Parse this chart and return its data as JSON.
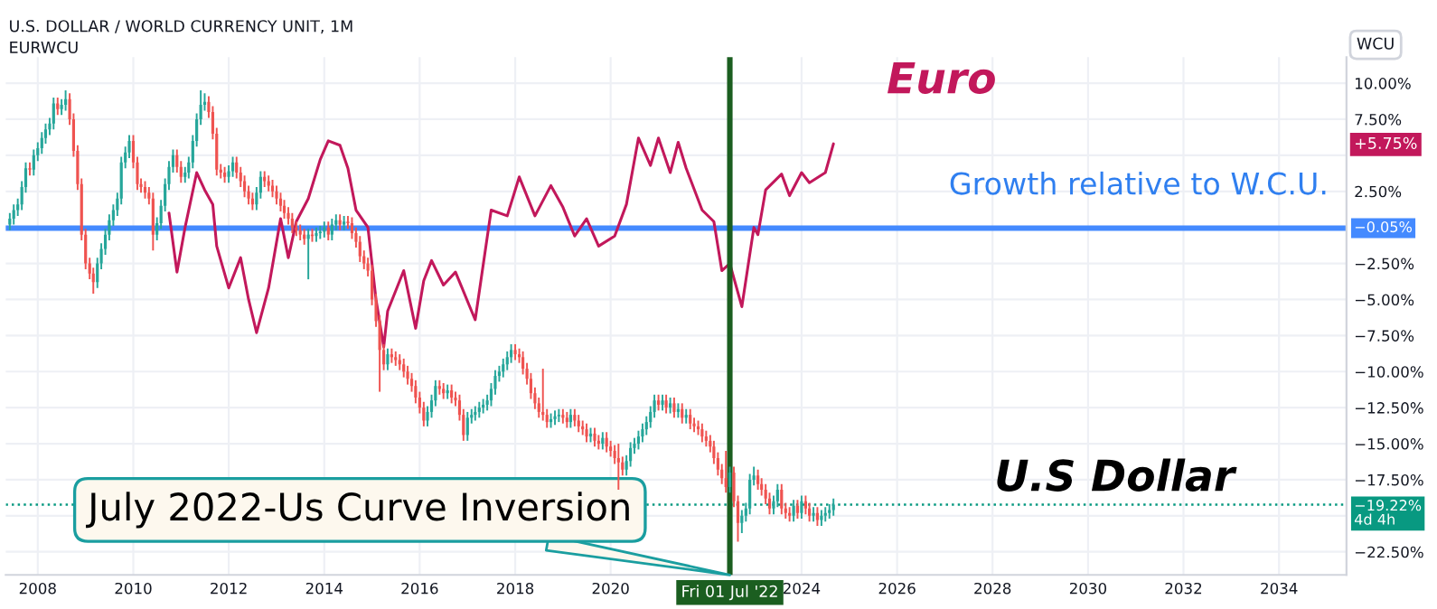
{
  "chart_data": {
    "type": "candlestick",
    "title": "U.S. DOLLAR / WORLD CURRENCY UNIT, 1M",
    "subtitle": "EURWCU",
    "ylabel": "WCU",
    "x": [
      "2007-06",
      "2007-07",
      "2007-08",
      "2007-09",
      "2007-10",
      "2007-11",
      "2007-12",
      "2008-01",
      "2008-02",
      "2008-03",
      "2008-04",
      "2008-05",
      "2008-06",
      "2008-07",
      "2008-08",
      "2008-09",
      "2008-10",
      "2008-11",
      "2008-12",
      "2009-01",
      "2009-02",
      "2009-03",
      "2009-04",
      "2009-05",
      "2009-06",
      "2009-07",
      "2009-08",
      "2009-09",
      "2009-10",
      "2009-11",
      "2009-12",
      "2010-01",
      "2010-02",
      "2010-03",
      "2010-04",
      "2010-05",
      "2010-06",
      "2010-07",
      "2010-08",
      "2010-09",
      "2010-10",
      "2010-11",
      "2010-12",
      "2011-01",
      "2011-02",
      "2011-03",
      "2011-04",
      "2011-05",
      "2011-06",
      "2011-07",
      "2011-08",
      "2011-09",
      "2011-10",
      "2011-11",
      "2011-12",
      "2012-01",
      "2012-02",
      "2012-03",
      "2012-04",
      "2012-05",
      "2012-06",
      "2012-07",
      "2012-08",
      "2012-09",
      "2012-10",
      "2012-11",
      "2012-12",
      "2013-01",
      "2013-02",
      "2013-03",
      "2013-04",
      "2013-05",
      "2013-06",
      "2013-07",
      "2013-08",
      "2013-09",
      "2013-10",
      "2013-11",
      "2013-12",
      "2014-01",
      "2014-02",
      "2014-03",
      "2014-04",
      "2014-05",
      "2014-06",
      "2014-07",
      "2014-08",
      "2014-09",
      "2014-10",
      "2014-11",
      "2014-12",
      "2015-01",
      "2015-02",
      "2015-03",
      "2015-04",
      "2015-05",
      "2015-06",
      "2015-07",
      "2015-08",
      "2015-09",
      "2015-10",
      "2015-11",
      "2015-12",
      "2016-01",
      "2016-02",
      "2016-03",
      "2016-04",
      "2016-05",
      "2016-06",
      "2016-07",
      "2016-08",
      "2016-09",
      "2016-10",
      "2016-11",
      "2016-12",
      "2017-01",
      "2017-02",
      "2017-03",
      "2017-04",
      "2017-05",
      "2017-06",
      "2017-07",
      "2017-08",
      "2017-09",
      "2017-10",
      "2017-11",
      "2017-12",
      "2018-01",
      "2018-02",
      "2018-03",
      "2018-04",
      "2018-05",
      "2018-06",
      "2018-07",
      "2018-08",
      "2018-09",
      "2018-10",
      "2018-11",
      "2018-12",
      "2019-01",
      "2019-02",
      "2019-03",
      "2019-04",
      "2019-05",
      "2019-06",
      "2019-07",
      "2019-08",
      "2019-09",
      "2019-10",
      "2019-11",
      "2019-12",
      "2020-01",
      "2020-02",
      "2020-03",
      "2020-04",
      "2020-05",
      "2020-06",
      "2020-07",
      "2020-08",
      "2020-09",
      "2020-10",
      "2020-11",
      "2020-12",
      "2021-01",
      "2021-02",
      "2021-03",
      "2021-04",
      "2021-05",
      "2021-06",
      "2021-07",
      "2021-08",
      "2021-09",
      "2021-10",
      "2021-11",
      "2021-12",
      "2022-01",
      "2022-02",
      "2022-03",
      "2022-04",
      "2022-05",
      "2022-06",
      "2022-07",
      "2022-08",
      "2022-09",
      "2022-10",
      "2022-11",
      "2022-12",
      "2023-01",
      "2023-02",
      "2023-03",
      "2023-04",
      "2023-05",
      "2023-06",
      "2023-07",
      "2023-08",
      "2023-09",
      "2023-10",
      "2023-11",
      "2023-12",
      "2024-01",
      "2024-02",
      "2024-03",
      "2024-04",
      "2024-05",
      "2024-06",
      "2024-07",
      "2024-08",
      "2024-09"
    ],
    "ohlc": [
      [
        0.2,
        1.0,
        -0.2,
        0.6
      ],
      [
        0.6,
        1.6,
        0.2,
        1.2
      ],
      [
        1.2,
        2.0,
        0.8,
        1.6
      ],
      [
        1.6,
        3.2,
        1.2,
        2.8
      ],
      [
        2.8,
        4.5,
        2.4,
        4.1
      ],
      [
        4.1,
        4.5,
        3.6,
        4.0
      ],
      [
        4.0,
        5.4,
        3.6,
        5.0
      ],
      [
        5.0,
        5.9,
        4.6,
        5.5
      ],
      [
        5.5,
        6.6,
        5.1,
        6.2
      ],
      [
        6.2,
        7.2,
        5.8,
        6.8
      ],
      [
        6.8,
        7.6,
        6.4,
        7.2
      ],
      [
        7.2,
        9.0,
        6.8,
        8.6
      ],
      [
        8.6,
        9.0,
        7.8,
        8.2
      ],
      [
        8.2,
        8.9,
        7.8,
        8.5
      ],
      [
        8.5,
        9.5,
        8.1,
        8.9
      ],
      [
        8.9,
        9.3,
        7.1,
        7.5
      ],
      [
        7.5,
        7.9,
        4.9,
        5.3
      ],
      [
        5.3,
        5.7,
        2.6,
        3.0
      ],
      [
        3.0,
        3.4,
        -0.9,
        -0.5
      ],
      [
        -0.5,
        -0.1,
        -2.9,
        -2.5
      ],
      [
        -2.5,
        -2.1,
        -3.6,
        -3.2
      ],
      [
        -3.2,
        -2.8,
        -4.6,
        -3.8
      ],
      [
        -3.8,
        -2.1,
        -4.2,
        -2.5
      ],
      [
        -2.5,
        -1.1,
        -2.9,
        -1.5
      ],
      [
        -1.5,
        -0.1,
        -1.9,
        -0.5
      ],
      [
        -0.5,
        0.9,
        -0.9,
        0.5
      ],
      [
        0.5,
        1.6,
        0.1,
        1.2
      ],
      [
        1.2,
        2.4,
        0.8,
        2.0
      ],
      [
        2.0,
        4.9,
        1.6,
        4.5
      ],
      [
        4.5,
        5.6,
        4.1,
        5.2
      ],
      [
        5.2,
        6.4,
        4.8,
        6.0
      ],
      [
        6.0,
        6.4,
        4.1,
        4.5
      ],
      [
        4.5,
        4.9,
        2.6,
        3.0
      ],
      [
        3.0,
        3.4,
        2.4,
        2.8
      ],
      [
        2.8,
        3.2,
        2.0,
        2.4
      ],
      [
        2.4,
        2.8,
        1.6,
        2.0
      ],
      [
        2.0,
        2.4,
        -1.6,
        -0.5
      ],
      [
        -0.5,
        0.7,
        -0.9,
        0.3
      ],
      [
        0.3,
        1.9,
        -0.1,
        1.5
      ],
      [
        1.5,
        3.4,
        1.1,
        3.0
      ],
      [
        3.0,
        4.6,
        2.6,
        4.2
      ],
      [
        4.2,
        5.4,
        3.8,
        5.0
      ],
      [
        5.0,
        5.4,
        3.8,
        4.2
      ],
      [
        4.2,
        4.6,
        3.1,
        3.5
      ],
      [
        3.5,
        4.2,
        3.1,
        3.8
      ],
      [
        3.8,
        4.9,
        3.4,
        4.5
      ],
      [
        4.5,
        6.4,
        4.1,
        6.0
      ],
      [
        6.0,
        7.9,
        5.6,
        7.5
      ],
      [
        7.5,
        9.5,
        7.1,
        8.5
      ],
      [
        8.5,
        9.3,
        8.1,
        8.7
      ],
      [
        8.7,
        9.1,
        7.6,
        8.0
      ],
      [
        8.0,
        8.4,
        6.1,
        6.5
      ],
      [
        6.5,
        6.9,
        3.6,
        4.0
      ],
      [
        4.0,
        4.4,
        3.4,
        3.8
      ],
      [
        3.8,
        4.2,
        3.1,
        3.5
      ],
      [
        3.5,
        4.3,
        3.1,
        3.9
      ],
      [
        3.9,
        4.9,
        3.5,
        4.5
      ],
      [
        4.5,
        4.9,
        3.4,
        3.8
      ],
      [
        3.8,
        4.2,
        2.8,
        3.2
      ],
      [
        3.2,
        3.6,
        2.1,
        2.5
      ],
      [
        2.5,
        2.9,
        1.6,
        2.0
      ],
      [
        2.0,
        2.4,
        1.2,
        1.6
      ],
      [
        1.6,
        2.8,
        1.2,
        2.4
      ],
      [
        2.4,
        3.9,
        2.0,
        3.5
      ],
      [
        3.5,
        3.9,
        2.8,
        3.2
      ],
      [
        3.2,
        3.6,
        2.5,
        2.9
      ],
      [
        2.9,
        3.3,
        2.1,
        2.5
      ],
      [
        2.5,
        2.9,
        1.6,
        2.0
      ],
      [
        2.0,
        2.4,
        1.1,
        1.5
      ],
      [
        1.5,
        1.9,
        0.6,
        1.0
      ],
      [
        1.0,
        1.4,
        0.2,
        0.6
      ],
      [
        0.6,
        1.0,
        -0.4,
        0.0
      ],
      [
        0.0,
        0.4,
        -0.6,
        -0.2
      ],
      [
        -0.2,
        0.2,
        -0.9,
        -0.5
      ],
      [
        -0.5,
        -0.1,
        -1.2,
        -0.8
      ],
      [
        -0.8,
        -0.1,
        -3.6,
        -0.5
      ],
      [
        -0.5,
        -0.1,
        -1.0,
        -0.6
      ],
      [
        -0.6,
        0.0,
        -1.0,
        -0.4
      ],
      [
        -0.4,
        0.1,
        -0.8,
        -0.3
      ],
      [
        -0.3,
        0.4,
        -0.7,
        0.0
      ],
      [
        0.0,
        0.4,
        -0.9,
        -0.5
      ],
      [
        -0.5,
        0.6,
        -0.9,
        0.2
      ],
      [
        0.2,
        0.9,
        -0.2,
        0.5
      ],
      [
        0.5,
        0.9,
        -0.2,
        0.2
      ],
      [
        0.2,
        0.8,
        -0.2,
        0.4
      ],
      [
        0.4,
        0.8,
        -0.1,
        0.3
      ],
      [
        0.3,
        0.7,
        -0.8,
        -0.4
      ],
      [
        -0.4,
        0.0,
        -1.4,
        -1.0
      ],
      [
        -1.0,
        -0.6,
        -2.4,
        -2.0
      ],
      [
        -2.0,
        -1.6,
        -2.9,
        -2.5
      ],
      [
        -2.5,
        -2.1,
        -3.4,
        -3.0
      ],
      [
        -3.0,
        -2.6,
        -5.4,
        -5.0
      ],
      [
        -5.0,
        -4.6,
        -6.9,
        -6.5
      ],
      [
        -6.5,
        -6.1,
        -11.4,
        -8.5
      ],
      [
        -8.5,
        -8.1,
        -9.9,
        -9.5
      ],
      [
        -9.5,
        -8.4,
        -9.9,
        -8.8
      ],
      [
        -8.8,
        -8.4,
        -9.4,
        -9.0
      ],
      [
        -9.0,
        -8.6,
        -9.6,
        -9.2
      ],
      [
        -9.2,
        -8.8,
        -9.9,
        -9.5
      ],
      [
        -9.5,
        -9.1,
        -10.4,
        -10.0
      ],
      [
        -10.0,
        -9.6,
        -10.9,
        -10.5
      ],
      [
        -10.5,
        -10.1,
        -11.4,
        -11.0
      ],
      [
        -11.0,
        -10.6,
        -12.2,
        -11.8
      ],
      [
        -11.8,
        -11.4,
        -12.9,
        -12.5
      ],
      [
        -12.5,
        -12.1,
        -13.8,
        -13.4
      ],
      [
        -13.4,
        -12.4,
        -13.8,
        -12.8
      ],
      [
        -12.8,
        -11.6,
        -13.2,
        -12.0
      ],
      [
        -12.0,
        -10.6,
        -12.4,
        -11.0
      ],
      [
        -11.0,
        -10.6,
        -11.6,
        -11.2
      ],
      [
        -11.2,
        -10.8,
        -11.9,
        -11.5
      ],
      [
        -11.5,
        -10.9,
        -11.9,
        -11.3
      ],
      [
        -11.3,
        -10.9,
        -12.2,
        -11.8
      ],
      [
        -11.8,
        -11.4,
        -12.4,
        -12.0
      ],
      [
        -12.0,
        -11.6,
        -13.4,
        -13.0
      ],
      [
        -13.0,
        -12.6,
        -14.8,
        -14.4
      ],
      [
        -14.4,
        -12.8,
        -14.8,
        -13.2
      ],
      [
        -13.2,
        -12.6,
        -13.6,
        -13.0
      ],
      [
        -13.0,
        -12.4,
        -13.4,
        -12.8
      ],
      [
        -12.8,
        -12.1,
        -13.2,
        -12.5
      ],
      [
        -12.5,
        -11.9,
        -12.9,
        -12.3
      ],
      [
        -12.3,
        -11.6,
        -12.7,
        -12.0
      ],
      [
        -12.0,
        -10.8,
        -12.4,
        -11.2
      ],
      [
        -11.2,
        -9.9,
        -11.6,
        -10.3
      ],
      [
        -10.3,
        -9.6,
        -10.7,
        -10.0
      ],
      [
        -10.0,
        -9.1,
        -10.4,
        -9.5
      ],
      [
        -9.5,
        -8.6,
        -9.9,
        -9.0
      ],
      [
        -9.0,
        -8.1,
        -9.4,
        -8.5
      ],
      [
        -8.5,
        -8.1,
        -9.2,
        -8.8
      ],
      [
        -8.8,
        -8.4,
        -9.4,
        -9.0
      ],
      [
        -9.0,
        -8.6,
        -10.2,
        -9.8
      ],
      [
        -9.8,
        -9.4,
        -10.9,
        -10.5
      ],
      [
        -10.5,
        -10.1,
        -11.9,
        -11.5
      ],
      [
        -11.5,
        -11.1,
        -12.6,
        -12.2
      ],
      [
        -12.2,
        -11.8,
        -13.2,
        -12.8
      ],
      [
        -12.8,
        -9.8,
        -13.4,
        -13.0
      ],
      [
        -13.0,
        -12.6,
        -13.9,
        -13.5
      ],
      [
        -13.5,
        -12.9,
        -13.9,
        -13.3
      ],
      [
        -13.3,
        -12.7,
        -13.7,
        -13.1
      ],
      [
        -13.1,
        -12.6,
        -13.5,
        -13.0
      ],
      [
        -13.0,
        -12.6,
        -13.6,
        -13.2
      ],
      [
        -13.2,
        -12.8,
        -13.9,
        -13.5
      ],
      [
        -13.5,
        -12.6,
        -13.9,
        -13.0
      ],
      [
        -13.0,
        -12.6,
        -13.8,
        -13.4
      ],
      [
        -13.4,
        -13.0,
        -14.2,
        -13.8
      ],
      [
        -13.8,
        -13.4,
        -14.4,
        -14.0
      ],
      [
        -14.0,
        -13.6,
        -14.9,
        -14.5
      ],
      [
        -14.5,
        -13.9,
        -14.9,
        -14.3
      ],
      [
        -14.3,
        -13.9,
        -15.2,
        -14.8
      ],
      [
        -14.8,
        -14.4,
        -15.4,
        -15.0
      ],
      [
        -15.0,
        -14.2,
        -15.4,
        -14.6
      ],
      [
        -14.6,
        -14.2,
        -15.6,
        -15.2
      ],
      [
        -15.2,
        -14.8,
        -15.9,
        -15.5
      ],
      [
        -15.5,
        -15.1,
        -16.4,
        -16.0
      ],
      [
        -16.0,
        -15.0,
        -18.2,
        -16.3
      ],
      [
        -16.3,
        -15.9,
        -17.2,
        -16.8
      ],
      [
        -16.8,
        -15.8,
        -17.2,
        -16.2
      ],
      [
        -16.2,
        -14.9,
        -16.6,
        -15.3
      ],
      [
        -15.3,
        -14.6,
        -15.7,
        -15.0
      ],
      [
        -15.0,
        -14.1,
        -15.4,
        -14.5
      ],
      [
        -14.5,
        -13.6,
        -14.9,
        -14.0
      ],
      [
        -14.0,
        -13.1,
        -14.4,
        -13.5
      ],
      [
        -13.5,
        -12.4,
        -13.9,
        -12.8
      ],
      [
        -12.8,
        -11.6,
        -13.2,
        -12.0
      ],
      [
        -12.0,
        -11.6,
        -12.7,
        -12.3
      ],
      [
        -12.3,
        -11.6,
        -12.7,
        -12.0
      ],
      [
        -12.0,
        -11.6,
        -12.9,
        -12.5
      ],
      [
        -12.5,
        -11.8,
        -12.9,
        -12.2
      ],
      [
        -12.2,
        -11.8,
        -13.2,
        -12.8
      ],
      [
        -12.8,
        -12.2,
        -13.2,
        -12.6
      ],
      [
        -12.6,
        -12.2,
        -13.6,
        -13.2
      ],
      [
        -13.2,
        -12.6,
        -13.6,
        -13.0
      ],
      [
        -13.0,
        -12.6,
        -14.0,
        -13.6
      ],
      [
        -13.6,
        -13.2,
        -14.2,
        -13.8
      ],
      [
        -13.8,
        -13.4,
        -14.4,
        -14.0
      ],
      [
        -14.0,
        -13.6,
        -14.9,
        -14.5
      ],
      [
        -14.5,
        -14.1,
        -15.2,
        -14.8
      ],
      [
        -14.8,
        -14.4,
        -15.6,
        -15.2
      ],
      [
        -15.2,
        -14.8,
        -16.4,
        -16.0
      ],
      [
        -16.0,
        -15.6,
        -17.2,
        -16.8
      ],
      [
        -16.8,
        -16.4,
        -17.8,
        -17.4
      ],
      [
        -17.4,
        -15.5,
        -18.4,
        -18.0
      ],
      [
        -18.0,
        -16.6,
        -18.4,
        -17.0
      ],
      [
        -17.0,
        -16.6,
        -19.4,
        -19.0
      ],
      [
        -19.0,
        -18.6,
        -21.8,
        -20.5
      ],
      [
        -20.5,
        -19.6,
        -21.2,
        -20.0
      ],
      [
        -20.0,
        -19.1,
        -20.4,
        -19.5
      ],
      [
        -19.5,
        -17.1,
        -19.9,
        -17.5
      ],
      [
        -17.5,
        -16.6,
        -17.9,
        -17.2
      ],
      [
        -17.2,
        -16.8,
        -18.2,
        -17.8
      ],
      [
        -17.8,
        -17.4,
        -18.6,
        -18.2
      ],
      [
        -18.2,
        -17.8,
        -19.2,
        -18.8
      ],
      [
        -18.8,
        -18.4,
        -19.9,
        -19.5
      ],
      [
        -19.5,
        -18.6,
        -19.9,
        -19.0
      ],
      [
        -19.0,
        -17.8,
        -19.4,
        -18.2
      ],
      [
        -18.2,
        -17.8,
        -19.9,
        -19.5
      ],
      [
        -19.5,
        -19.1,
        -20.2,
        -19.8
      ],
      [
        -19.8,
        -19.4,
        -20.4,
        -20.0
      ],
      [
        -20.0,
        -18.9,
        -20.4,
        -19.3
      ],
      [
        -19.3,
        -18.9,
        -20.2,
        -19.8
      ],
      [
        -19.8,
        -18.6,
        -20.2,
        -19.0
      ],
      [
        -19.0,
        -18.6,
        -19.9,
        -19.5
      ],
      [
        -19.5,
        -19.1,
        -20.4,
        -20.0
      ],
      [
        -20.0,
        -19.4,
        -20.4,
        -19.8
      ],
      [
        -19.8,
        -19.4,
        -20.7,
        -20.3
      ],
      [
        -20.3,
        -19.6,
        -20.7,
        -20.0
      ],
      [
        -20.0,
        -19.4,
        -20.4,
        -19.8
      ],
      [
        -19.8,
        -19.2,
        -20.2,
        -19.6
      ],
      [
        -19.6,
        -18.8,
        -20.0,
        -19.22
      ]
    ],
    "series": [
      {
        "type": "line",
        "color": "#c2185b",
        "x": [
          "2010-10",
          "2010-12",
          "2011-02",
          "2011-05",
          "2011-07",
          "2011-09",
          "2011-10",
          "2012-01",
          "2012-04",
          "2012-06",
          "2012-08",
          "2012-11",
          "2013-02",
          "2013-04",
          "2013-06",
          "2013-09",
          "2013-12",
          "2014-02",
          "2014-05",
          "2014-07",
          "2014-09",
          "2014-12",
          "2015-02",
          "2015-04",
          "2015-05",
          "2015-09",
          "2015-12",
          "2016-02",
          "2016-04",
          "2016-07",
          "2016-10",
          "2017-02",
          "2017-03",
          "2017-07",
          "2017-11",
          "2018-02",
          "2018-06",
          "2018-10",
          "2019-01",
          "2019-04",
          "2019-07",
          "2019-10",
          "2020-02",
          "2020-05",
          "2020-08",
          "2020-11",
          "2021-01",
          "2021-04",
          "2021-06",
          "2021-08",
          "2021-12",
          "2022-03",
          "2022-05",
          "2022-07",
          "2022-10",
          "2023-01",
          "2023-02",
          "2023-04",
          "2023-08",
          "2023-10",
          "2024-01",
          "2024-03",
          "2024-07",
          "2024-09"
        ],
        "values": [
          1.0,
          -3.1,
          0.0,
          3.8,
          2.6,
          1.6,
          -1.3,
          -4.2,
          -2.1,
          -5.0,
          -7.3,
          -4.2,
          0.6,
          -2.1,
          0.4,
          2.0,
          4.7,
          6.0,
          5.7,
          4.1,
          1.2,
          0.0,
          -5.0,
          -8.3,
          -5.8,
          -3.0,
          -7.0,
          -3.7,
          -2.3,
          -4.0,
          -3.1,
          -5.8,
          -6.4,
          1.2,
          0.8,
          3.5,
          0.8,
          2.9,
          1.4,
          -0.6,
          0.6,
          -1.3,
          -0.6,
          1.6,
          6.2,
          4.3,
          6.2,
          3.8,
          5.9,
          4.1,
          1.2,
          0.4,
          -3.0,
          -2.5,
          -5.5,
          0.0,
          -0.5,
          2.6,
          3.7,
          2.2,
          3.8,
          3.1,
          3.8,
          5.8
        ]
      }
    ],
    "xlim": [
      "2007-05",
      "2035-06"
    ],
    "xticks": [
      {
        "value": "2008",
        "label": "2008"
      },
      {
        "value": "2010",
        "label": "2010"
      },
      {
        "value": "2012",
        "label": "2012"
      },
      {
        "value": "2014",
        "label": "2014"
      },
      {
        "value": "2016",
        "label": "2016"
      },
      {
        "value": "2018",
        "label": "2018"
      },
      {
        "value": "2020",
        "label": "2020"
      },
      {
        "value": "2024",
        "label": "2024"
      },
      {
        "value": "2026",
        "label": "2026"
      },
      {
        "value": "2028",
        "label": "2028"
      },
      {
        "value": "2030",
        "label": "2030"
      },
      {
        "value": "2032",
        "label": "2032"
      },
      {
        "value": "2034",
        "label": "2034"
      }
    ],
    "ylim": [
      -24.1,
      11.8
    ],
    "yticks": [
      {
        "value": 10,
        "label": "10.00%"
      },
      {
        "value": 7.5,
        "label": "7.50%"
      },
      {
        "value": 5,
        "label": null
      },
      {
        "value": 2.5,
        "label": "2.50%"
      },
      {
        "value": 0,
        "label": null
      },
      {
        "value": -2.5,
        "label": "−2.50%"
      },
      {
        "value": -5,
        "label": "−5.00%"
      },
      {
        "value": -7.5,
        "label": "−7.50%"
      },
      {
        "value": -10,
        "label": "−10.00%"
      },
      {
        "value": -12.5,
        "label": "−12.50%"
      },
      {
        "value": -15,
        "label": "−15.00%"
      },
      {
        "value": -17.5,
        "label": "−17.50%"
      },
      {
        "value": -20,
        "label": null
      },
      {
        "value": -22.5,
        "label": "−22.50%"
      }
    ],
    "grid": true,
    "ref_lines": [
      {
        "axis": "y",
        "value": -0.05,
        "label": "−0.05%",
        "color": "#448aff",
        "line_style": "solid"
      },
      {
        "axis": "y",
        "value": -19.22,
        "label": "−19.22%\n4d 4h",
        "color": "#089981",
        "line_style": "dotted"
      },
      {
        "axis": "x",
        "value": "2022-07-01",
        "label": "Fri 01 Jul '22",
        "color": "#1b5e20",
        "line_style": "solid"
      }
    ],
    "annotations": [
      "Euro",
      "Growth relative to W.C.U.",
      "U.S Dollar",
      {
        "text": "July 2022-Us Curve Inversion",
        "x": "2014-10",
        "y": -19.6
      },
      {
        "text": "+5.75%",
        "y": 5.75
      }
    ]
  }
}
